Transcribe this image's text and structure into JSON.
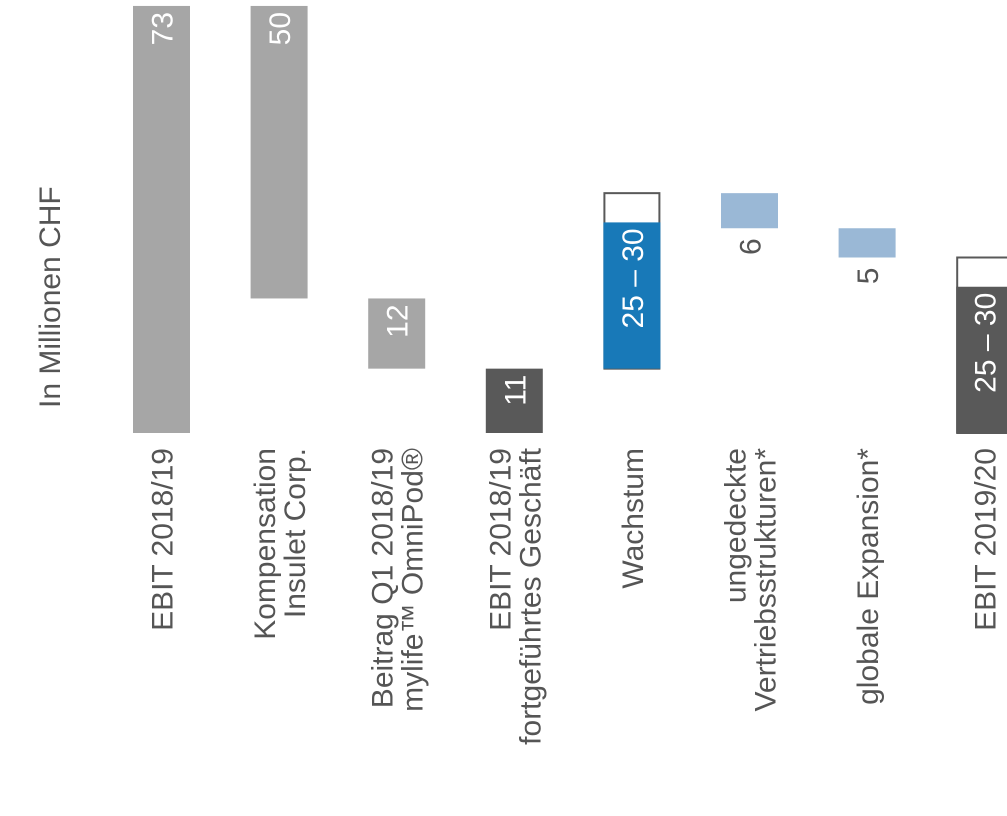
{
  "chart_data": {
    "type": "bar",
    "subtype": "waterfall",
    "orientation": "rotated",
    "title": "",
    "unit_label": "In Millionen CHF",
    "colors": {
      "gray": "#a6a6a6",
      "dark": "#595959",
      "blue": "#1879b8",
      "light_blue": "#9ab8d6",
      "range_box_border": "#595959"
    },
    "categories": [
      {
        "label_lines": [
          "EBIT 2018/19"
        ],
        "value_label": "73",
        "start": 0,
        "end": 73,
        "kind": "total",
        "color_key": "gray"
      },
      {
        "label_lines": [
          "Kompensation",
          "Insulet Corp."
        ],
        "value_label": "50",
        "start": 23,
        "end": 73,
        "kind": "decrease",
        "color_key": "gray"
      },
      {
        "label_lines": [
          "Beitrag Q1 2018/19",
          "mylife™ OmniPod®"
        ],
        "value_label": "12",
        "start": 11,
        "end": 23,
        "kind": "decrease",
        "color_key": "gray"
      },
      {
        "label_lines": [
          "EBIT 2018/19",
          "fortgeführtes Geschäft"
        ],
        "value_label": "11",
        "start": 0,
        "end": 11,
        "kind": "total",
        "color_key": "dark"
      },
      {
        "label_lines": [
          "Wachstum"
        ],
        "value_label": "25 – 30",
        "start": 11,
        "end": 36,
        "range_end": 41,
        "kind": "increase",
        "color_key": "blue"
      },
      {
        "label_lines": [
          "ungedeckte",
          "Vertriebsstrukturen*"
        ],
        "value_label": "6",
        "start": 35,
        "end": 41,
        "kind": "decrease",
        "color_key": "light_blue"
      },
      {
        "label_lines": [
          "globale Expansion*"
        ],
        "value_label": "5",
        "start": 30,
        "end": 35,
        "kind": "decrease",
        "color_key": "light_blue"
      },
      {
        "label_lines": [
          "EBIT 2019/20"
        ],
        "value_label": "25 – 30",
        "start": 0,
        "end": 25,
        "range_end": 30,
        "kind": "total",
        "color_key": "dark"
      }
    ]
  }
}
